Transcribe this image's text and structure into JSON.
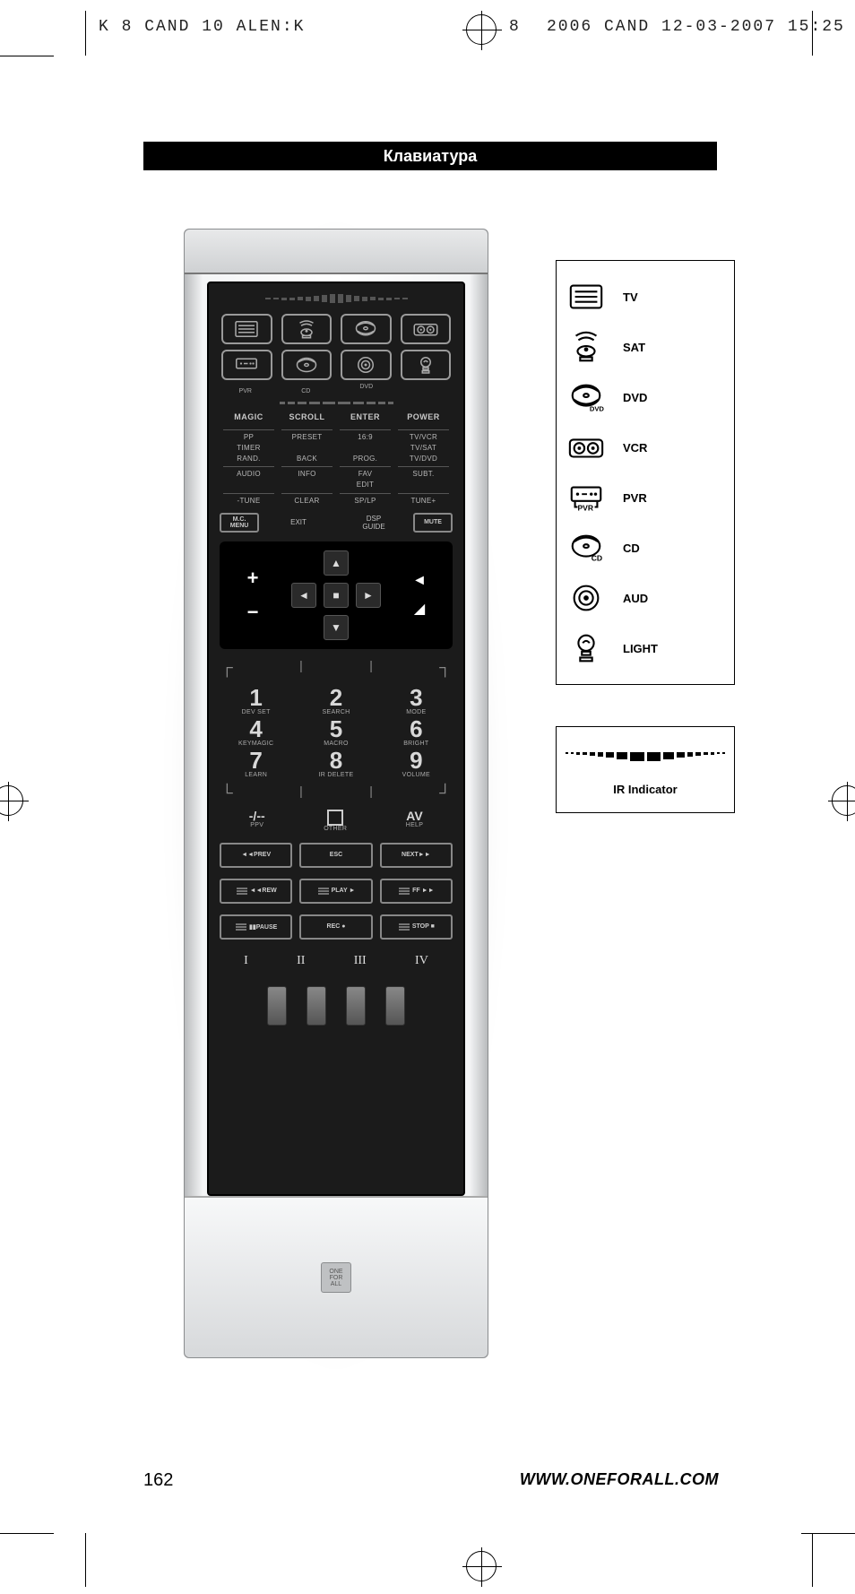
{
  "print_header": {
    "left": "K      8  CAND 10  ALEN:K",
    "mid": "8",
    "right": "2006  CAND  12-03-2007  15:25"
  },
  "title": "Клавиатура",
  "page_number": "162",
  "website": "WWW.ONEFORALL.COM",
  "legend": {
    "items": [
      {
        "label": "TV"
      },
      {
        "label": "SAT"
      },
      {
        "label": "DVD"
      },
      {
        "label": "VCR"
      },
      {
        "label": "PVR"
      },
      {
        "label": "CD"
      },
      {
        "label": "AUD"
      },
      {
        "label": "LIGHT"
      }
    ]
  },
  "ir_indicator": {
    "caption": "IR Indicator"
  },
  "remote": {
    "soft_keys": [
      "MAGIC",
      "SCROLL",
      "ENTER",
      "POWER"
    ],
    "device_sub": [
      "",
      "",
      "DVD",
      "",
      "PVR",
      "CD",
      "",
      ""
    ],
    "text_rows": [
      [
        "PP",
        "PRESET",
        "16:9",
        "TV/VCR"
      ],
      [
        "TIMER",
        "",
        "",
        "TV/SAT"
      ],
      [
        "RAND.",
        "BACK",
        "PROG.",
        "TV/DVD"
      ],
      [
        "AUDIO",
        "INFO",
        "FAV",
        "SUBT."
      ],
      [
        "",
        "",
        "EDIT",
        ""
      ],
      [
        "-TUNE",
        "CLEAR",
        "SP/LP",
        "TUNE+"
      ]
    ],
    "corner": {
      "left_top": "M.C.",
      "left_bot": "MENU",
      "mids": [
        "EXIT",
        "DSP\nGUIDE"
      ],
      "right": "MUTE"
    },
    "nav": {
      "plus": "+",
      "minus": "−",
      "up": "▲",
      "down": "▼",
      "left": "◄",
      "right": "►",
      "ok": "■",
      "ch_up": "◄",
      "ch_dn": "◢"
    },
    "numbers": [
      {
        "n": "1",
        "lbl": "DEV SET"
      },
      {
        "n": "2",
        "lbl": "SEARCH"
      },
      {
        "n": "3",
        "lbl": "MODE"
      },
      {
        "n": "4",
        "lbl": "KEYMAGIC"
      },
      {
        "n": "5",
        "lbl": "MACRO"
      },
      {
        "n": "6",
        "lbl": "BRIGHT"
      },
      {
        "n": "7",
        "lbl": "LEARN"
      },
      {
        "n": "8",
        "lbl": "IR DELETE"
      },
      {
        "n": "9",
        "lbl": "VOLUME"
      }
    ],
    "zero_row": [
      {
        "n": "-/--",
        "lbl": "PPV"
      },
      {
        "n": "□",
        "lbl": "OTHER"
      },
      {
        "n": "AV",
        "lbl": "HELP"
      }
    ],
    "transport": {
      "row1": [
        "◄◄PREV",
        "ESC",
        "NEXT►►"
      ],
      "row2": [
        "◄◄REW",
        "PLAY ►",
        "FF ►►"
      ],
      "row3": [
        "▮▮PAUSE",
        "REC ●",
        "STOP ■"
      ]
    },
    "roman": [
      "I",
      "II",
      "III",
      "IV"
    ],
    "logo": "ONE\nFOR\nALL"
  },
  "style": {
    "page_bg": "#ffffff",
    "title_bg": "#000000",
    "title_fg": "#ffffff",
    "remote_body_gradient": [
      "#b9bbbd",
      "#f4f5f6",
      "#ffffff",
      "#f4f5f6",
      "#b9bbbd"
    ],
    "panel_bg": "#1b1b1b",
    "panel_fg": "#bfbfbf",
    "outline": "#888888",
    "ir_pattern_heights": [
      2,
      2,
      3,
      3,
      4,
      5,
      6,
      8,
      10,
      10,
      8,
      6,
      5,
      4,
      3,
      3,
      2,
      2
    ],
    "ir_pattern_widths": [
      3,
      3,
      4,
      5,
      6,
      7,
      9,
      12,
      16,
      16,
      12,
      9,
      7,
      6,
      5,
      4,
      3,
      3
    ]
  }
}
